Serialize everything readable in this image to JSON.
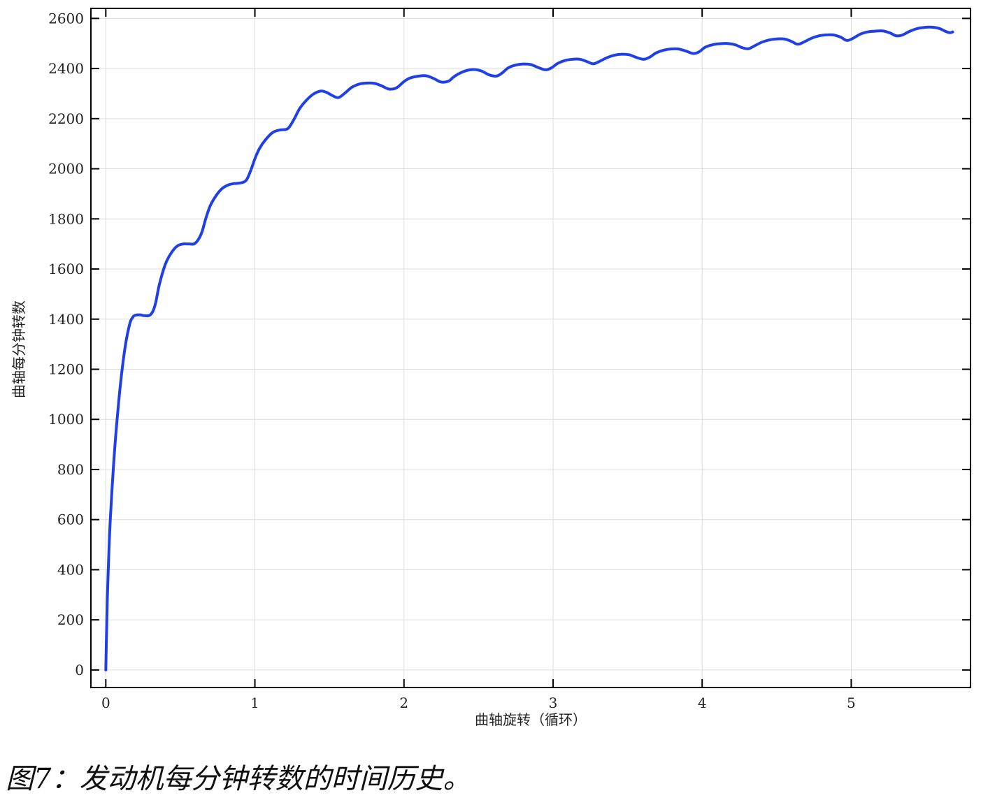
{
  "caption": "图7：发动机每分钟转数的时间历史。",
  "chart_data": {
    "type": "line",
    "title": "",
    "xlabel": "曲轴旋转（循环）",
    "ylabel": "曲轴每分钟转数",
    "xlim": [
      -0.1,
      5.8
    ],
    "ylim": [
      -70,
      2640
    ],
    "xticks": [
      0,
      1,
      2,
      3,
      4,
      5
    ],
    "yticks": [
      0,
      200,
      400,
      600,
      800,
      1000,
      1200,
      1400,
      1600,
      1800,
      2000,
      2200,
      2400,
      2600
    ],
    "grid": true,
    "line_color": "#1f3fe8",
    "series": [
      {
        "x": [
          0,
          0.005,
          0.01,
          0.02,
          0.03,
          0.05,
          0.07,
          0.1,
          0.13,
          0.16,
          0.18,
          0.2,
          0.23,
          0.26,
          0.3,
          0.33,
          0.36,
          0.4,
          0.44,
          0.48,
          0.52,
          0.56,
          0.6,
          0.64,
          0.67,
          0.7,
          0.74,
          0.78,
          0.82,
          0.86,
          0.9,
          0.94,
          0.97,
          1.0,
          1.03,
          1.07,
          1.12,
          1.17,
          1.22,
          1.26,
          1.3,
          1.34,
          1.39,
          1.44,
          1.48,
          1.52,
          1.56,
          1.6,
          1.65,
          1.7,
          1.75,
          1.8,
          1.85,
          1.9,
          1.95,
          2.0,
          2.04,
          2.1,
          2.15,
          2.2,
          2.25,
          2.3,
          2.33,
          2.37,
          2.42,
          2.47,
          2.52,
          2.57,
          2.62,
          2.66,
          2.7,
          2.75,
          2.8,
          2.85,
          2.9,
          2.95,
          2.99,
          3.03,
          3.08,
          3.13,
          3.18,
          3.23,
          3.27,
          3.31,
          3.36,
          3.41,
          3.46,
          3.51,
          3.56,
          3.61,
          3.65,
          3.69,
          3.74,
          3.79,
          3.84,
          3.89,
          3.94,
          3.98,
          4.02,
          4.07,
          4.12,
          4.17,
          4.22,
          4.27,
          4.31,
          4.35,
          4.4,
          4.45,
          4.5,
          4.55,
          4.6,
          4.64,
          4.68,
          4.73,
          4.78,
          4.83,
          4.88,
          4.93,
          4.97,
          5.01,
          5.06,
          5.11,
          5.16,
          5.21,
          5.26,
          5.3,
          5.34,
          5.39,
          5.44,
          5.49,
          5.54,
          5.59,
          5.63,
          5.66,
          5.68
        ],
        "values": [
          0,
          150,
          280,
          460,
          600,
          800,
          960,
          1150,
          1290,
          1380,
          1407,
          1416,
          1417,
          1414,
          1418,
          1455,
          1540,
          1620,
          1665,
          1692,
          1700,
          1700,
          1703,
          1740,
          1800,
          1852,
          1893,
          1921,
          1935,
          1941,
          1943,
          1953,
          1990,
          2040,
          2080,
          2115,
          2145,
          2155,
          2160,
          2195,
          2240,
          2270,
          2297,
          2310,
          2305,
          2292,
          2284,
          2300,
          2325,
          2338,
          2342,
          2341,
          2331,
          2318,
          2323,
          2348,
          2362,
          2370,
          2371,
          2360,
          2346,
          2350,
          2365,
          2380,
          2392,
          2396,
          2390,
          2375,
          2370,
          2383,
          2403,
          2414,
          2418,
          2416,
          2404,
          2395,
          2403,
          2420,
          2432,
          2437,
          2437,
          2427,
          2419,
          2428,
          2443,
          2453,
          2457,
          2455,
          2444,
          2437,
          2446,
          2462,
          2473,
          2478,
          2478,
          2470,
          2460,
          2467,
          2485,
          2495,
          2499,
          2500,
          2495,
          2483,
          2479,
          2490,
          2505,
          2514,
          2518,
          2518,
          2508,
          2497,
          2505,
          2520,
          2530,
          2534,
          2534,
          2525,
          2512,
          2520,
          2537,
          2546,
          2549,
          2550,
          2542,
          2531,
          2533,
          2548,
          2559,
          2564,
          2565,
          2560,
          2549,
          2543,
          2546
        ]
      }
    ]
  }
}
